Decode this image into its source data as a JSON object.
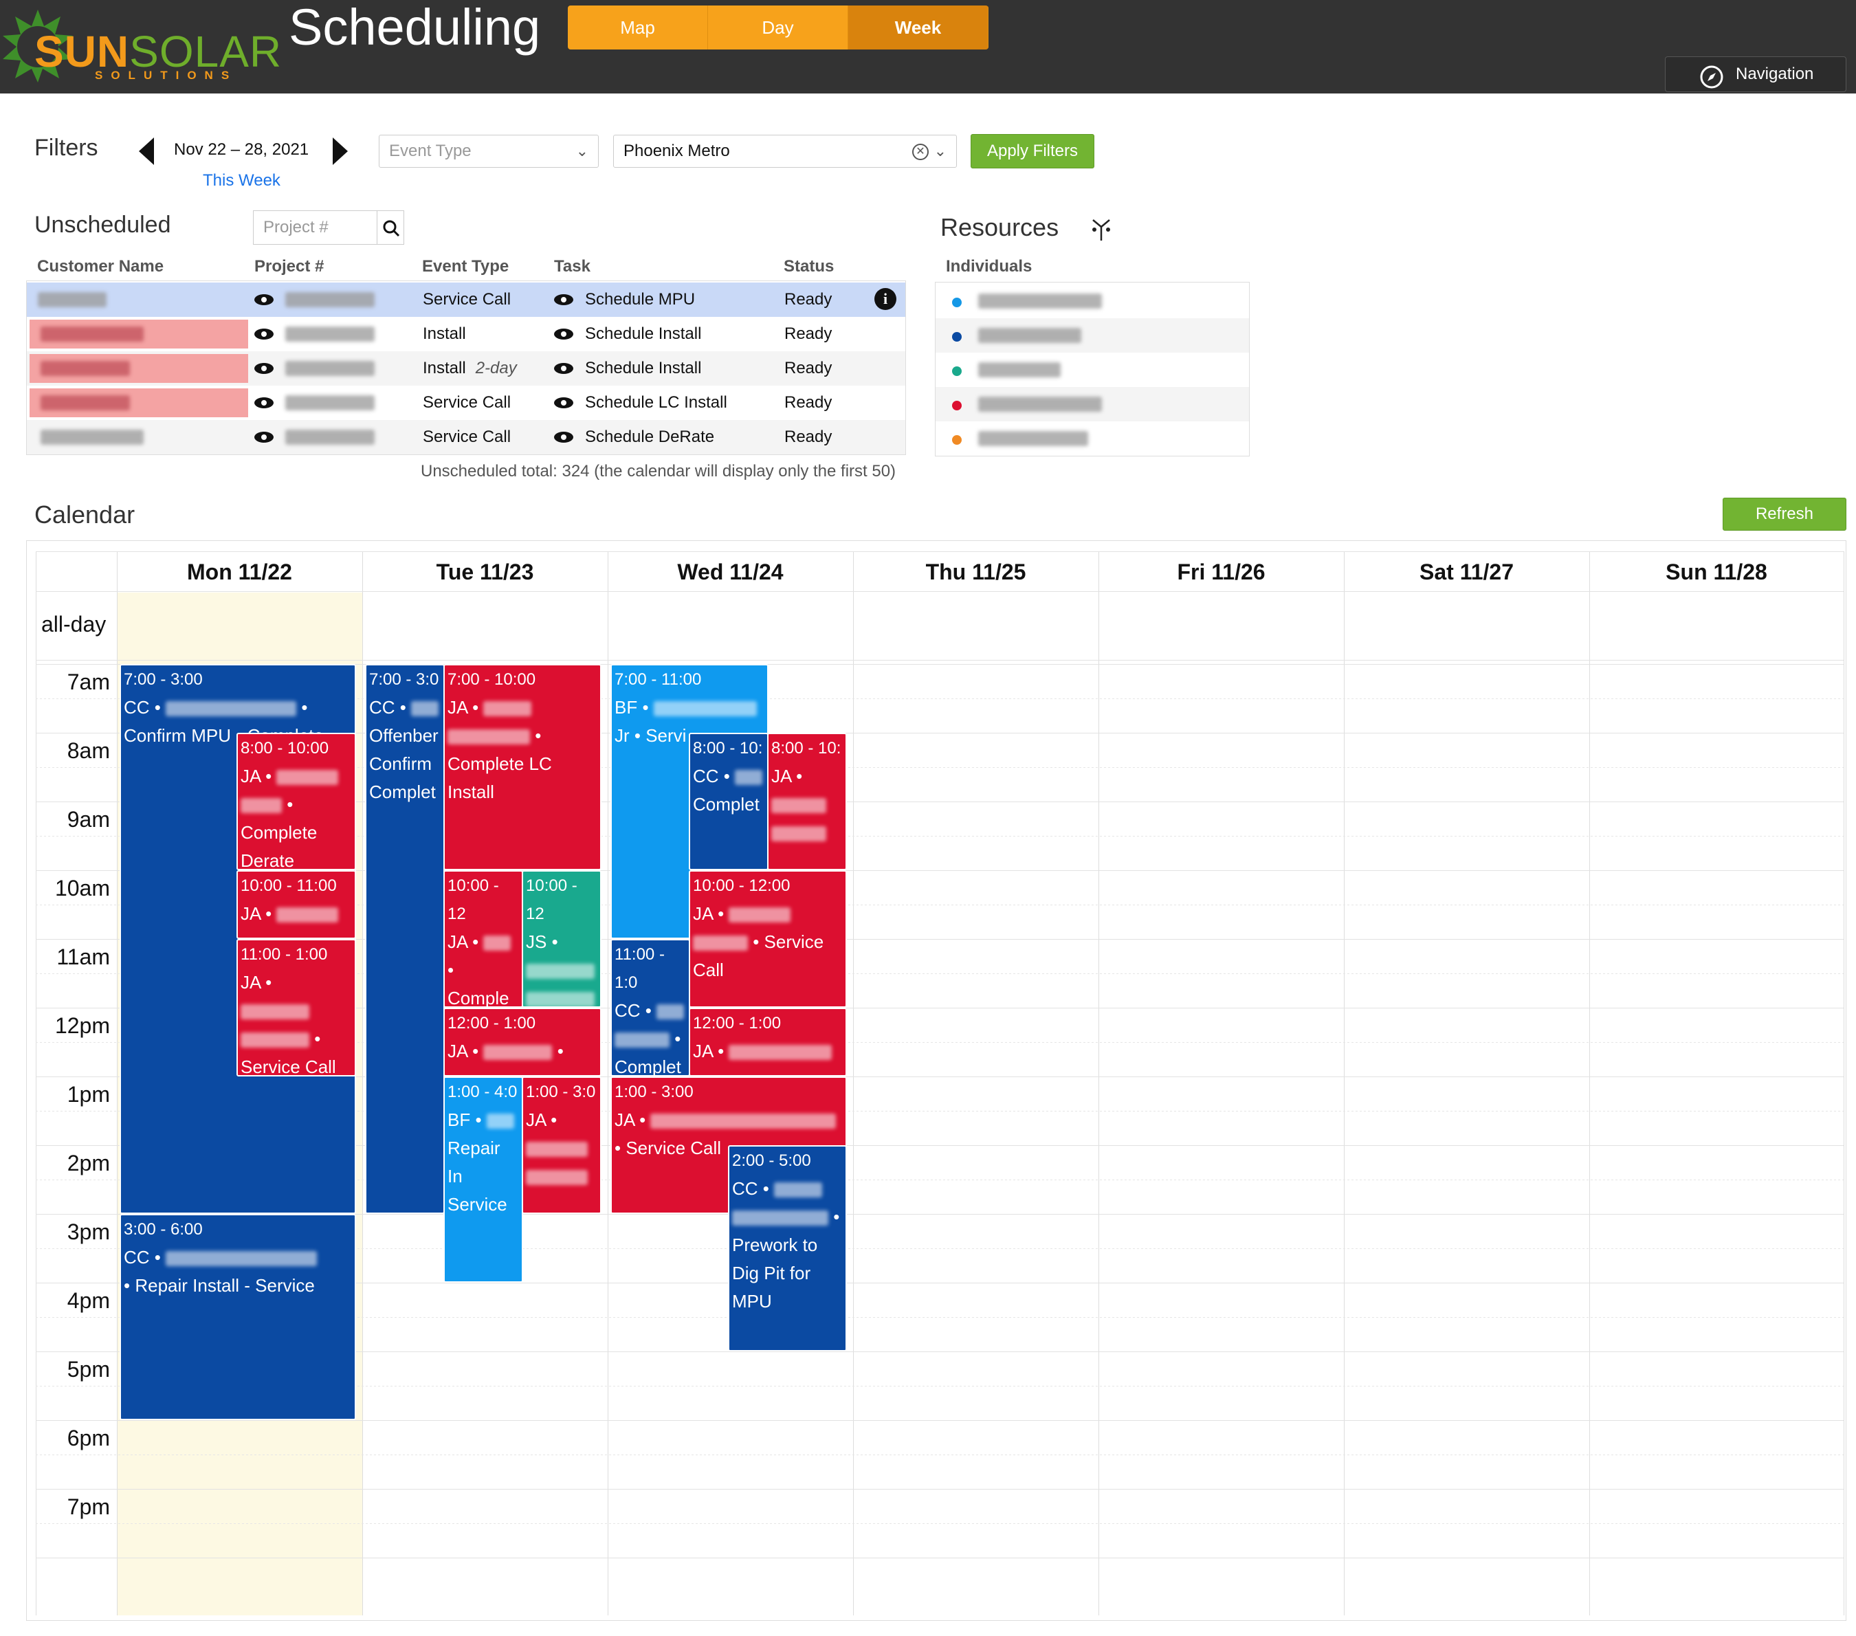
{
  "header": {
    "logo_part1": "SUN",
    "logo_part2": "SOLAR",
    "logo_sub": "SOLUTIONS",
    "title": "Scheduling",
    "view_tabs": [
      "Map",
      "Day",
      "Week"
    ],
    "active_tab": "Week",
    "nav_button": "Navigation"
  },
  "filters": {
    "title": "Filters",
    "date_range": "Nov 22 – 28, 2021",
    "this_week": "This Week",
    "event_type_placeholder": "Event Type",
    "region_value": "Phoenix Metro",
    "apply_label": "Apply Filters"
  },
  "unscheduled": {
    "title": "Unscheduled",
    "search_placeholder": "Project #",
    "columns": [
      "Customer Name",
      "Project #",
      "Event Type",
      "Task",
      "Status"
    ],
    "rows": [
      {
        "event_type": "Service Call",
        "event_note": "",
        "task": "Schedule MPU",
        "status": "Ready"
      },
      {
        "event_type": "Install",
        "event_note": "",
        "task": "Schedule Install",
        "status": "Ready"
      },
      {
        "event_type": "Install",
        "event_note": "2-day",
        "task": "Schedule Install",
        "status": "Ready"
      },
      {
        "event_type": "Service Call",
        "event_note": "",
        "task": "Schedule LC Install",
        "status": "Ready"
      },
      {
        "event_type": "Service Call",
        "event_note": "",
        "task": "Schedule DeRate",
        "status": "Ready"
      }
    ],
    "total_text": "Unscheduled total: 324  (the calendar will display only the first 50)"
  },
  "resources": {
    "title": "Resources",
    "group": "Individuals",
    "colors": [
      "#1598e6",
      "#0b4aa2",
      "#1aa98c",
      "#dc0f30",
      "#f08a24"
    ]
  },
  "calendar": {
    "title": "Calendar",
    "refresh_label": "Refresh",
    "days": [
      "Mon 11/22",
      "Tue 11/23",
      "Wed 11/24",
      "Thu 11/25",
      "Fri 11/26",
      "Sat 11/27",
      "Sun 11/28"
    ],
    "all_day_label": "all-day",
    "hours": [
      "7am",
      "8am",
      "9am",
      "10am",
      "11am",
      "12pm",
      "1pm",
      "2pm",
      "3pm",
      "4pm",
      "5pm",
      "6pm",
      "7pm"
    ],
    "events": {
      "mon_a": {
        "time": "7:00 - 3:00",
        "who": "CC •",
        "text": "Confirm MPU • Complete"
      },
      "mon_b": {
        "time": "8:00 - 10:00",
        "who": "JA •",
        "text": "Complete Derate"
      },
      "mon_c": {
        "time": "10:00 - 11:00",
        "who": "JA •",
        "text": ""
      },
      "mon_d": {
        "time": "11:00 - 1:00",
        "who": "JA •",
        "text": "Service Call"
      },
      "mon_e": {
        "time": "3:00 - 6:00",
        "who": "CC •",
        "text": "• Repair Install - Service"
      },
      "tue_a": {
        "time": "7:00 - 3:0",
        "who": "CC •",
        "text": "Offenber Confirm Complet"
      },
      "tue_b": {
        "time": "7:00 - 10:00",
        "who": "JA •",
        "text": "Complete LC Install"
      },
      "tue_c": {
        "time": "10:00 - 12",
        "who": "JA •",
        "text": "• Comple Derate"
      },
      "tue_d": {
        "time": "10:00 - 12",
        "who": "JS •",
        "text": ""
      },
      "tue_e": {
        "time": "12:00 - 1:00",
        "who": "JA •",
        "text": ""
      },
      "tue_f": {
        "time": "1:00 - 4:0",
        "who": "BF •",
        "text": "Repair In Service"
      },
      "tue_g": {
        "time": "1:00 - 3:0",
        "who": "JA •",
        "text": ""
      },
      "wed_a": {
        "time": "7:00 - 11:00",
        "who": "BF •",
        "text": "Jr • Servi"
      },
      "wed_b": {
        "time": "8:00 - 10:",
        "who": "CC •",
        "text": "Complet"
      },
      "wed_c": {
        "time": "8:00 - 10:",
        "who": "JA •",
        "text": ""
      },
      "wed_d": {
        "time": "10:00 - 12:00",
        "who": "JA •",
        "text": "• Service Call"
      },
      "wed_e": {
        "time": "11:00 - 1:0",
        "who": "CC •",
        "text": "Complet"
      },
      "wed_f": {
        "time": "12:00 - 1:00",
        "who": "JA •",
        "text": ""
      },
      "wed_g": {
        "time": "1:00 - 3:00",
        "who": "JA •",
        "text": "• Service Call"
      },
      "wed_h": {
        "time": "2:00 - 5:00",
        "who": "CC •",
        "text": "Prework to Dig Pit for MPU"
      }
    }
  }
}
